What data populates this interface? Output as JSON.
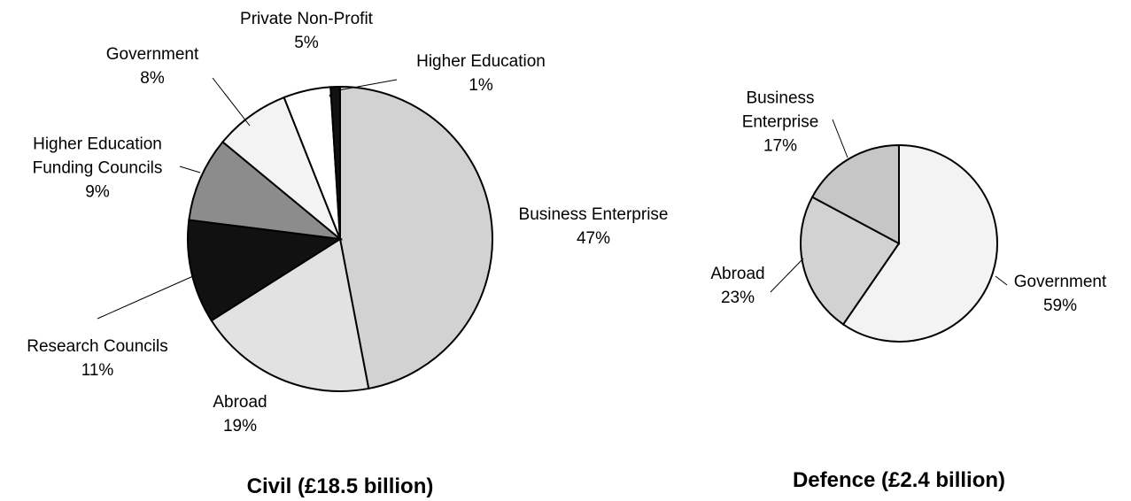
{
  "chart_data": [
    {
      "type": "pie",
      "title": "Civil (£18.5 billion)",
      "categories": [
        "Business Enterprise",
        "Abroad",
        "Research Councils",
        "Higher Education Funding Councils",
        "Government",
        "Private Non-Profit",
        "Higher Education"
      ],
      "values": [
        47,
        19,
        11,
        9,
        8,
        5,
        1
      ],
      "value_labels": [
        "47%",
        "19%",
        "11%",
        "9%",
        "8%",
        "5%",
        "1%"
      ],
      "colors": [
        "#d2d2d2",
        "#e2e2e2",
        "#111111",
        "#8c8c8c",
        "#f3f3f3",
        "#ffffff",
        "#111111"
      ]
    },
    {
      "type": "pie",
      "title": "Defence (£2.4 billion)",
      "categories": [
        "Government",
        "Abroad",
        "Business Enterprise"
      ],
      "values": [
        59,
        23,
        17
      ],
      "value_labels": [
        "59%",
        "23%",
        "17%"
      ],
      "colors": [
        "#f3f3f3",
        "#d2d2d2",
        "#c6c6c6"
      ]
    }
  ]
}
